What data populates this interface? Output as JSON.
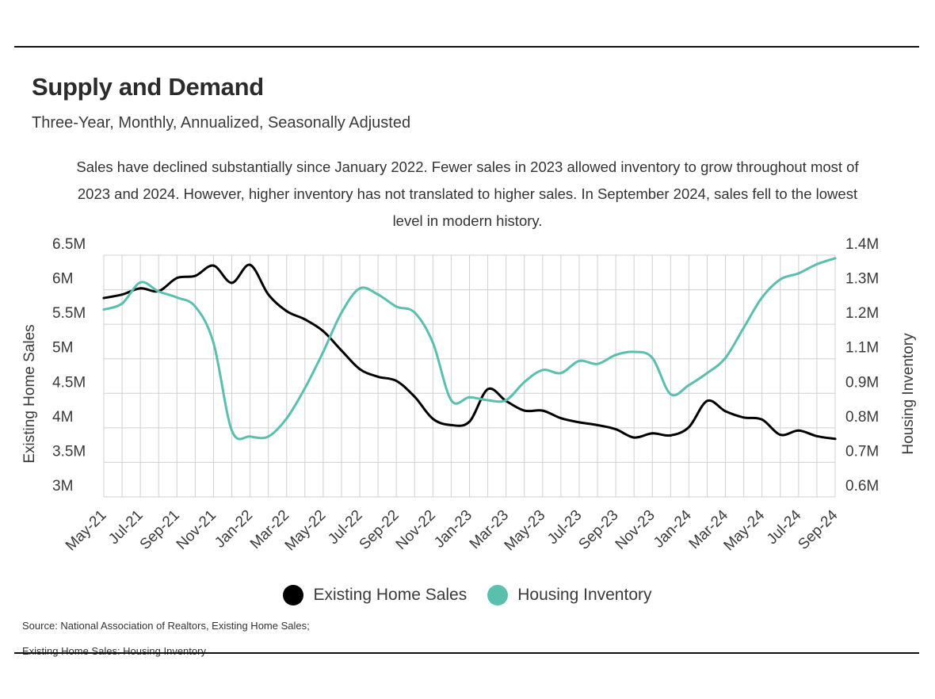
{
  "header": {
    "title": "Supply and Demand",
    "subtitle": "Three-Year, Monthly, Annualized, Seasonally Adjusted",
    "description": "Sales have declined substantially since January 2022. Fewer sales in 2023 allowed inventory to grow throughout most of 2023 and 2024. However, higher inventory has not translated to higher sales. In September 2024, sales fell to the lowest level in modern history."
  },
  "legend": {
    "sales_label": "Existing Home Sales",
    "inventory_label": "Housing Inventory"
  },
  "source": {
    "line1": "Source:  National Association of Realtors, Existing Home Sales;",
    "line2": "Existing Home Sales: Housing Inventory"
  },
  "colors": {
    "sales": "#000000",
    "inventory": "#5bbfae",
    "grid": "#d0d0d0",
    "text": "#3a3a3a"
  },
  "chart_data": {
    "type": "line",
    "grid": true,
    "legend_placement": "bottom-center",
    "xlabel": "",
    "ylabel_left": "Existing Home Sales",
    "ylabel_right": "Housing Inventory",
    "ylim_left": [
      3.0,
      6.5
    ],
    "ylim_right": [
      0.6,
      1.4
    ],
    "yticks_left": [
      "3M",
      "3.5M",
      "4M",
      "4.5M",
      "5M",
      "5.5M",
      "6M",
      "6.5M"
    ],
    "yticks_right": [
      "0.6M",
      "0.7M",
      "0.8M",
      "0.9M",
      "1.1M",
      "1.2M",
      "1.3M",
      "1.4M"
    ],
    "x": [
      "May-21",
      "Jun-21",
      "Jul-21",
      "Aug-21",
      "Sep-21",
      "Oct-21",
      "Nov-21",
      "Dec-21",
      "Jan-22",
      "Feb-22",
      "Mar-22",
      "Apr-22",
      "May-22",
      "Jun-22",
      "Jul-22",
      "Aug-22",
      "Sep-22",
      "Oct-22",
      "Nov-22",
      "Dec-22",
      "Jan-23",
      "Feb-23",
      "Mar-23",
      "Apr-23",
      "May-23",
      "Jun-23",
      "Jul-23",
      "Aug-23",
      "Sep-23",
      "Oct-23",
      "Nov-23",
      "Dec-23",
      "Jan-24",
      "Feb-24",
      "Mar-24",
      "Apr-24",
      "May-24",
      "Jun-24",
      "Jul-24",
      "Aug-24",
      "Sep-24"
    ],
    "x_tick_labels": [
      "May-21",
      "Jul-21",
      "Sep-21",
      "Nov-21",
      "Jan-22",
      "Mar-22",
      "May-22",
      "Jul-22",
      "Sep-22",
      "Nov-22",
      "Jan-23",
      "Mar-23",
      "May-23",
      "Jul-23",
      "Sep-23",
      "Nov-23",
      "Jan-24",
      "Mar-24",
      "May-24",
      "Jul-24",
      "Sep-24"
    ],
    "series": [
      {
        "name": "Existing Home Sales",
        "axis": "left",
        "values": [
          5.88,
          5.93,
          6.02,
          5.98,
          6.17,
          6.2,
          6.35,
          6.1,
          6.36,
          5.93,
          5.69,
          5.57,
          5.4,
          5.12,
          4.85,
          4.74,
          4.68,
          4.45,
          4.13,
          4.04,
          4.09,
          4.56,
          4.39,
          4.25,
          4.25,
          4.14,
          4.08,
          4.04,
          3.98,
          3.86,
          3.92,
          3.89,
          4.01,
          4.39,
          4.24,
          4.15,
          4.12,
          3.9,
          3.96,
          3.88,
          3.84
        ]
      },
      {
        "name": "Housing Inventory",
        "axis": "right",
        "values": [
          1.22,
          1.24,
          1.31,
          1.28,
          1.26,
          1.23,
          1.11,
          0.82,
          0.8,
          0.8,
          0.86,
          0.96,
          1.08,
          1.21,
          1.29,
          1.27,
          1.23,
          1.21,
          1.11,
          0.92,
          0.93,
          0.92,
          0.92,
          0.98,
          1.02,
          1.01,
          1.05,
          1.04,
          1.07,
          1.08,
          1.06,
          0.94,
          0.97,
          1.01,
          1.06,
          1.16,
          1.26,
          1.32,
          1.34,
          1.37,
          1.39
        ]
      }
    ]
  }
}
